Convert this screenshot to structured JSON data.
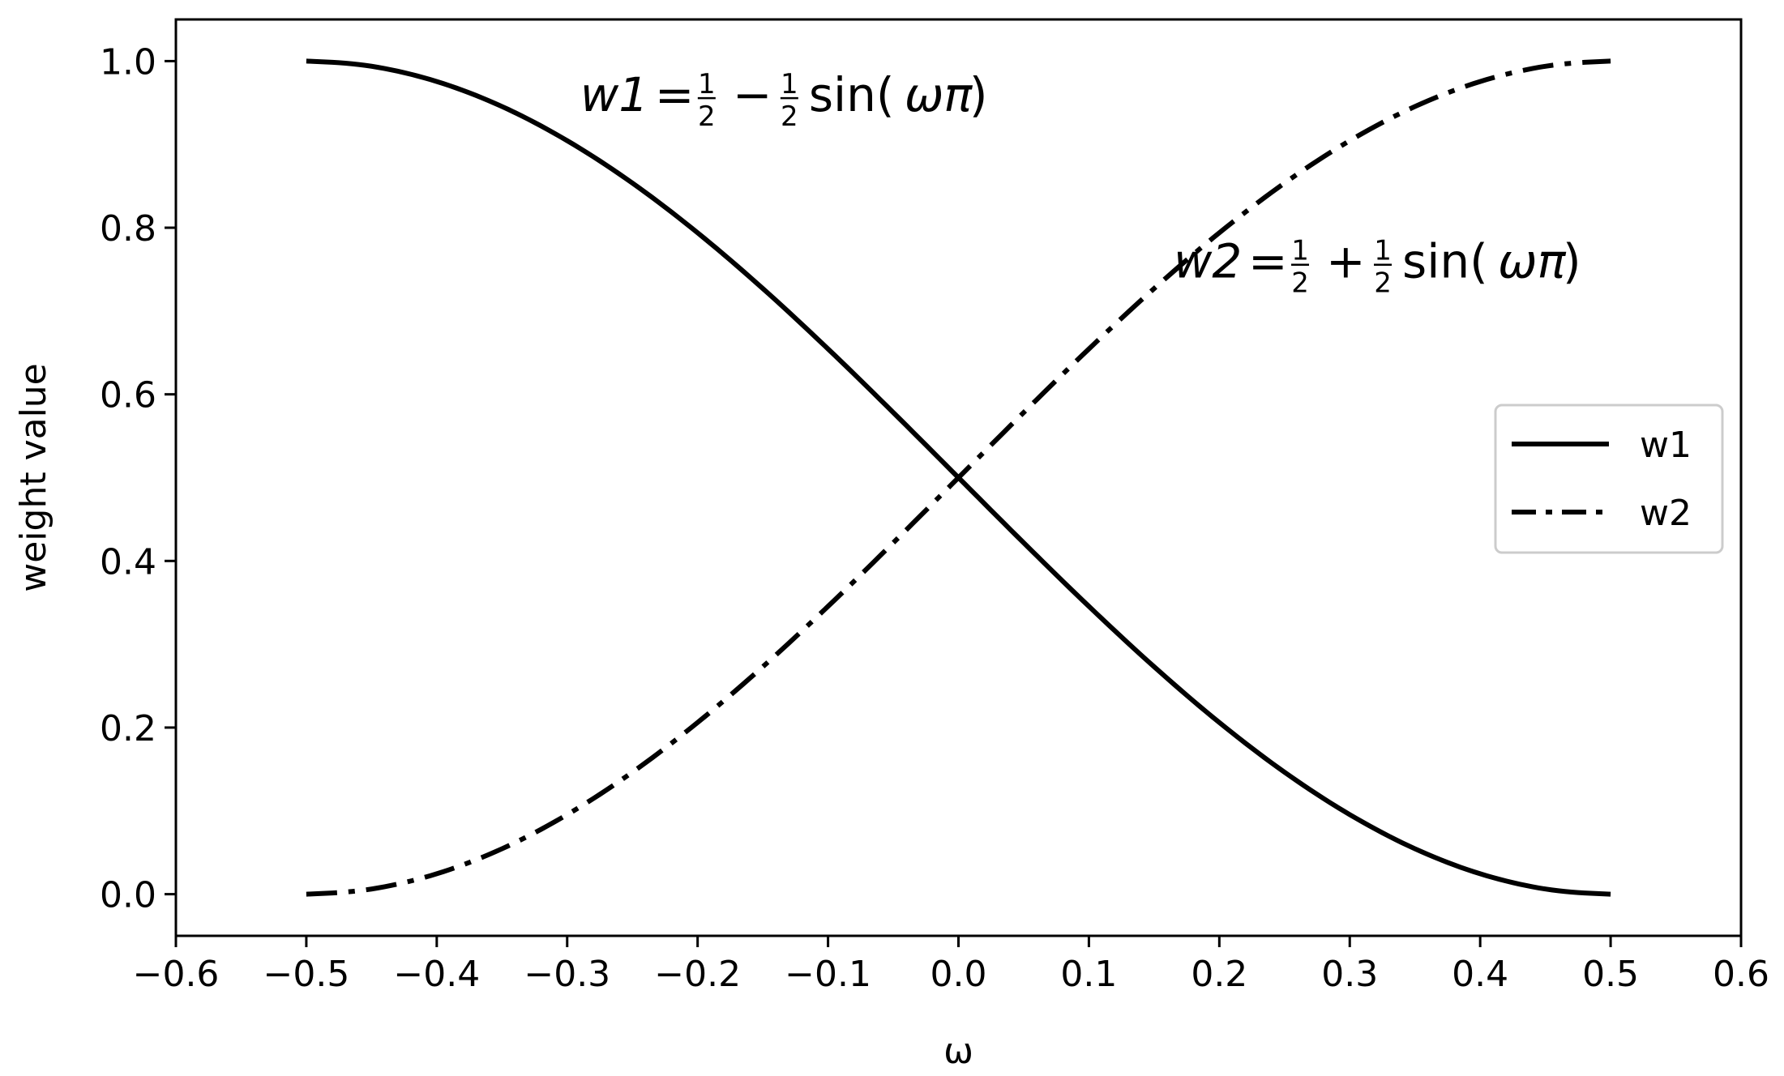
{
  "chart_data": {
    "type": "line",
    "title": "",
    "xlabel": "ω",
    "ylabel": "weight value",
    "xlim": [
      -0.6,
      0.6
    ],
    "ylim": [
      -0.05,
      1.05
    ],
    "xticks": [
      -0.6,
      -0.5,
      -0.4,
      -0.3,
      -0.2,
      -0.1,
      0.0,
      0.1,
      0.2,
      0.3,
      0.4,
      0.5,
      0.6
    ],
    "xtick_labels": [
      "−0.6",
      "−0.5",
      "−0.4",
      "−0.3",
      "−0.2",
      "−0.1",
      "0.0",
      "0.1",
      "0.2",
      "0.3",
      "0.4",
      "0.5",
      "0.6"
    ],
    "yticks": [
      0.0,
      0.2,
      0.4,
      0.6,
      0.8,
      1.0
    ],
    "ytick_labels": [
      "0.0",
      "0.2",
      "0.4",
      "0.6",
      "0.8",
      "1.0"
    ],
    "grid": false,
    "legend_position": "center-right",
    "x": [
      -0.5,
      -0.45,
      -0.4,
      -0.35,
      -0.3,
      -0.25,
      -0.2,
      -0.15,
      -0.1,
      -0.05,
      0.0,
      0.05,
      0.1,
      0.15,
      0.2,
      0.25,
      0.3,
      0.35,
      0.4,
      0.45,
      0.5
    ],
    "series": [
      {
        "name": "w1",
        "line_style": "solid",
        "color": "#000000",
        "values": [
          1.0,
          0.9938,
          0.9755,
          0.9455,
          0.9045,
          0.8536,
          0.7939,
          0.727,
          0.6545,
          0.5782,
          0.5,
          0.4218,
          0.3455,
          0.273,
          0.2061,
          0.1464,
          0.0955,
          0.0545,
          0.0245,
          0.0062,
          0.0
        ]
      },
      {
        "name": "w2",
        "line_style": "dashdot",
        "color": "#000000",
        "values": [
          0.0,
          0.0062,
          0.0245,
          0.0545,
          0.0955,
          0.1464,
          0.2061,
          0.273,
          0.3455,
          0.4218,
          0.5,
          0.5782,
          0.6545,
          0.727,
          0.7939,
          0.8536,
          0.9045,
          0.9455,
          0.9755,
          0.9938,
          1.0
        ]
      }
    ],
    "annotations": [
      {
        "lhs": "w1",
        "eq": "=",
        "half_a": "1/2",
        "op": "−",
        "half_b": "1/2",
        "func": "sin(",
        "arg": "ωπ",
        "close": ")",
        "anchor_x": -0.29,
        "anchor_y": 0.94
      },
      {
        "lhs": "w2",
        "eq": "=",
        "half_a": "1/2",
        "op": "+",
        "half_b": "1/2",
        "func": "sin(",
        "arg": "ωπ",
        "close": ")",
        "anchor_x": 0.165,
        "anchor_y": 0.74
      }
    ]
  }
}
